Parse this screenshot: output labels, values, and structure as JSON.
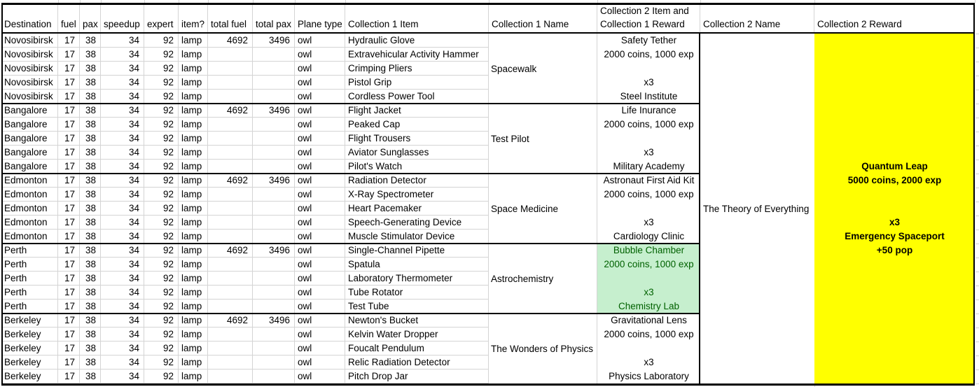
{
  "sheet": {
    "headers": {
      "destination": "Destination",
      "fuel": "fuel",
      "pax": "pax",
      "speedup": "speedup",
      "expert": "expert",
      "item": "item?",
      "total_fuel": "total fuel",
      "total_pax": "total pax",
      "plane": "Plane type",
      "c1item": "Collection 1 Item",
      "c1name": "Collection 1 Name",
      "c2item_line1": "Collection 2 Item and",
      "c2item_line2": "Collection 1 Reward",
      "c2name": "Collection 2 Name",
      "c2reward": "Collection 2 Reward"
    },
    "row_values": {
      "fuel": "17",
      "pax": "38",
      "speedup": "34",
      "expert": "92",
      "item": "lamp",
      "total_fuel": "4692",
      "total_pax": "3496",
      "plane": "owl"
    },
    "groups": [
      {
        "destination": "Novosibirsk",
        "collection1_name": "Spacewalk",
        "items": [
          "Hydraulic Glove",
          "Extravehicular Activity Hammer",
          "Crimping Pliers",
          "Pistol Grip",
          "Cordless Power Tool"
        ],
        "collection2_lines": [
          "Safety Tether",
          "2000 coins, 1000 exp",
          "",
          "x3",
          "Steel Institute"
        ],
        "highlight": false
      },
      {
        "destination": "Bangalore",
        "collection1_name": "Test Pilot",
        "items": [
          "Flight Jacket",
          "Peaked Cap",
          "Flight Trousers",
          "Aviator Sunglasses",
          "Pilot's Watch"
        ],
        "collection2_lines": [
          "Life Inurance",
          "2000 coins, 1000 exp",
          "",
          "x3",
          "Military Academy"
        ],
        "highlight": false
      },
      {
        "destination": "Edmonton",
        "collection1_name": "Space Medicine",
        "items": [
          "Radiation Detector",
          "X-Ray Spectrometer",
          "Heart Pacemaker",
          "Speech-Generating Device",
          "Muscle Stimulator Device"
        ],
        "collection2_lines": [
          "Astronaut First Aid Kit",
          "2000 coins, 1000 exp",
          "",
          "x3",
          "Cardiology Clinic"
        ],
        "highlight": false
      },
      {
        "destination": "Perth",
        "collection1_name": "Astrochemistry",
        "items": [
          "Single-Channel Pipette",
          "Spatula",
          "Laboratory Thermometer",
          "Tube Rotator",
          "Test Tube"
        ],
        "collection2_lines": [
          "Bubble Chamber",
          "2000 coins, 1000 exp",
          "",
          "x3",
          "Chemistry Lab"
        ],
        "highlight": true
      },
      {
        "destination": "Berkeley",
        "collection1_name": "The Wonders of Physics",
        "items": [
          "Newton's Bucket",
          "Kelvin Water Dropper",
          "Foucalt Pendulum",
          "Relic Radiation Detector",
          "Pitch Drop Jar"
        ],
        "collection2_lines": [
          "Gravitational Lens",
          "2000 coins, 1000 exp",
          "",
          "x3",
          "Physics Laboratory"
        ],
        "highlight": false
      }
    ],
    "collection2_name": "The Theory of Everything",
    "collection2_reward": {
      "lines": [
        "Quantum Leap",
        "5000 coins, 2000 exp",
        "",
        "",
        "x3",
        "Emergency Spaceport",
        "+50 pop"
      ]
    },
    "colors": {
      "reward_bg": "#FFFF00",
      "highlight_bg": "#C6EFCE",
      "highlight_text": "#006100"
    }
  }
}
